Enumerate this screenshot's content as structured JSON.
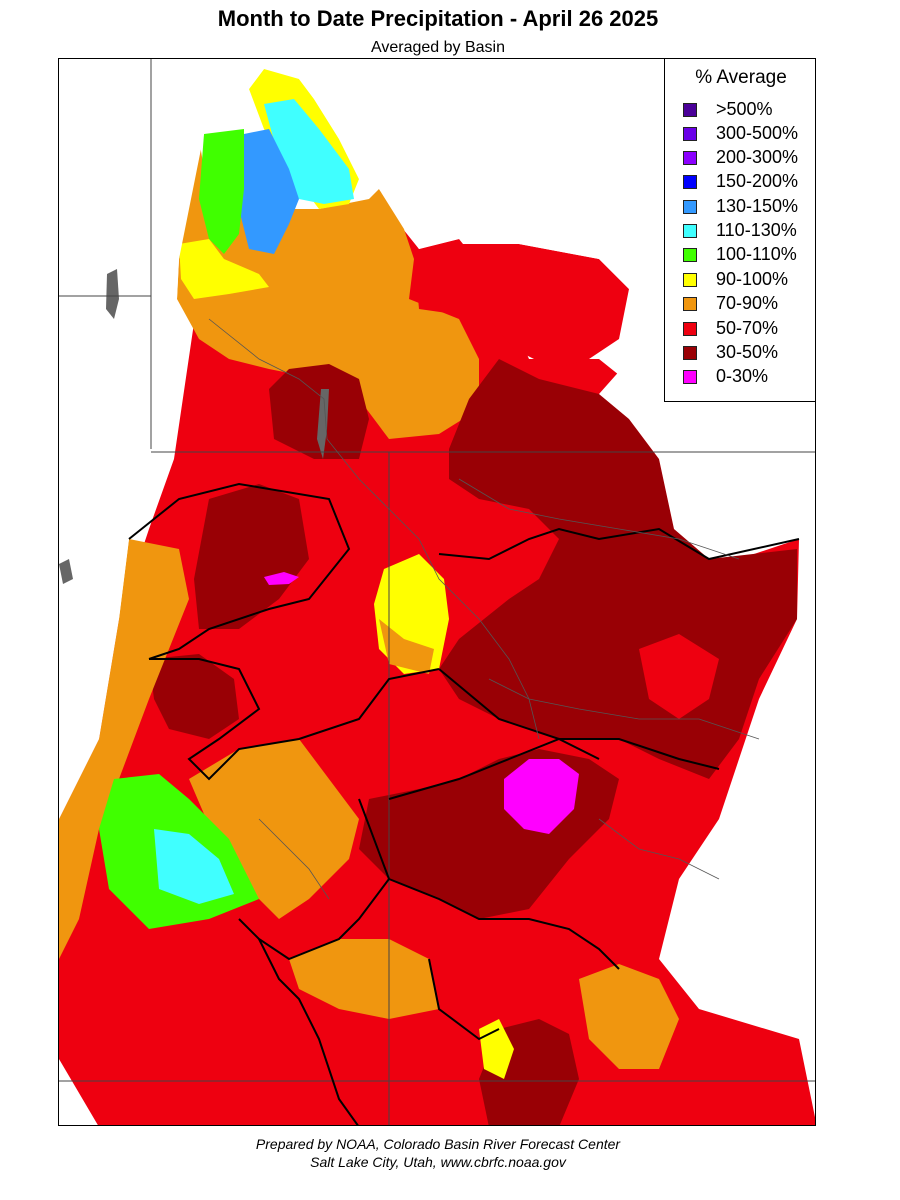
{
  "title": "Month to Date Precipitation - April 26 2025",
  "subtitle": "Averaged by Basin",
  "legend": {
    "title": "% Average",
    "items": [
      {
        "label": ">500%",
        "color": "#4b0099"
      },
      {
        "label": "300-500%",
        "color": "#6a00e8"
      },
      {
        "label": "200-300%",
        "color": "#8b00ff"
      },
      {
        "label": "150-200%",
        "color": "#0000ff"
      },
      {
        "label": "130-150%",
        "color": "#3399ff"
      },
      {
        "label": "110-130%",
        "color": "#40ffff"
      },
      {
        "label": "100-110%",
        "color": "#40ff00"
      },
      {
        "label": "90-100%",
        "color": "#ffff00"
      },
      {
        "label": "70-90%",
        "color": "#f0960f"
      },
      {
        "label": "50-70%",
        "color": "#ee0010"
      },
      {
        "label": "30-50%",
        "color": "#990005"
      },
      {
        "label": "0-30%",
        "color": "#ff00ff"
      }
    ]
  },
  "credit": {
    "line1": "Prepared by NOAA, Colorado Basin River Forecast Center",
    "line2": "Salt Lake City, Utah, www.cbrfc.noaa.gov"
  }
}
